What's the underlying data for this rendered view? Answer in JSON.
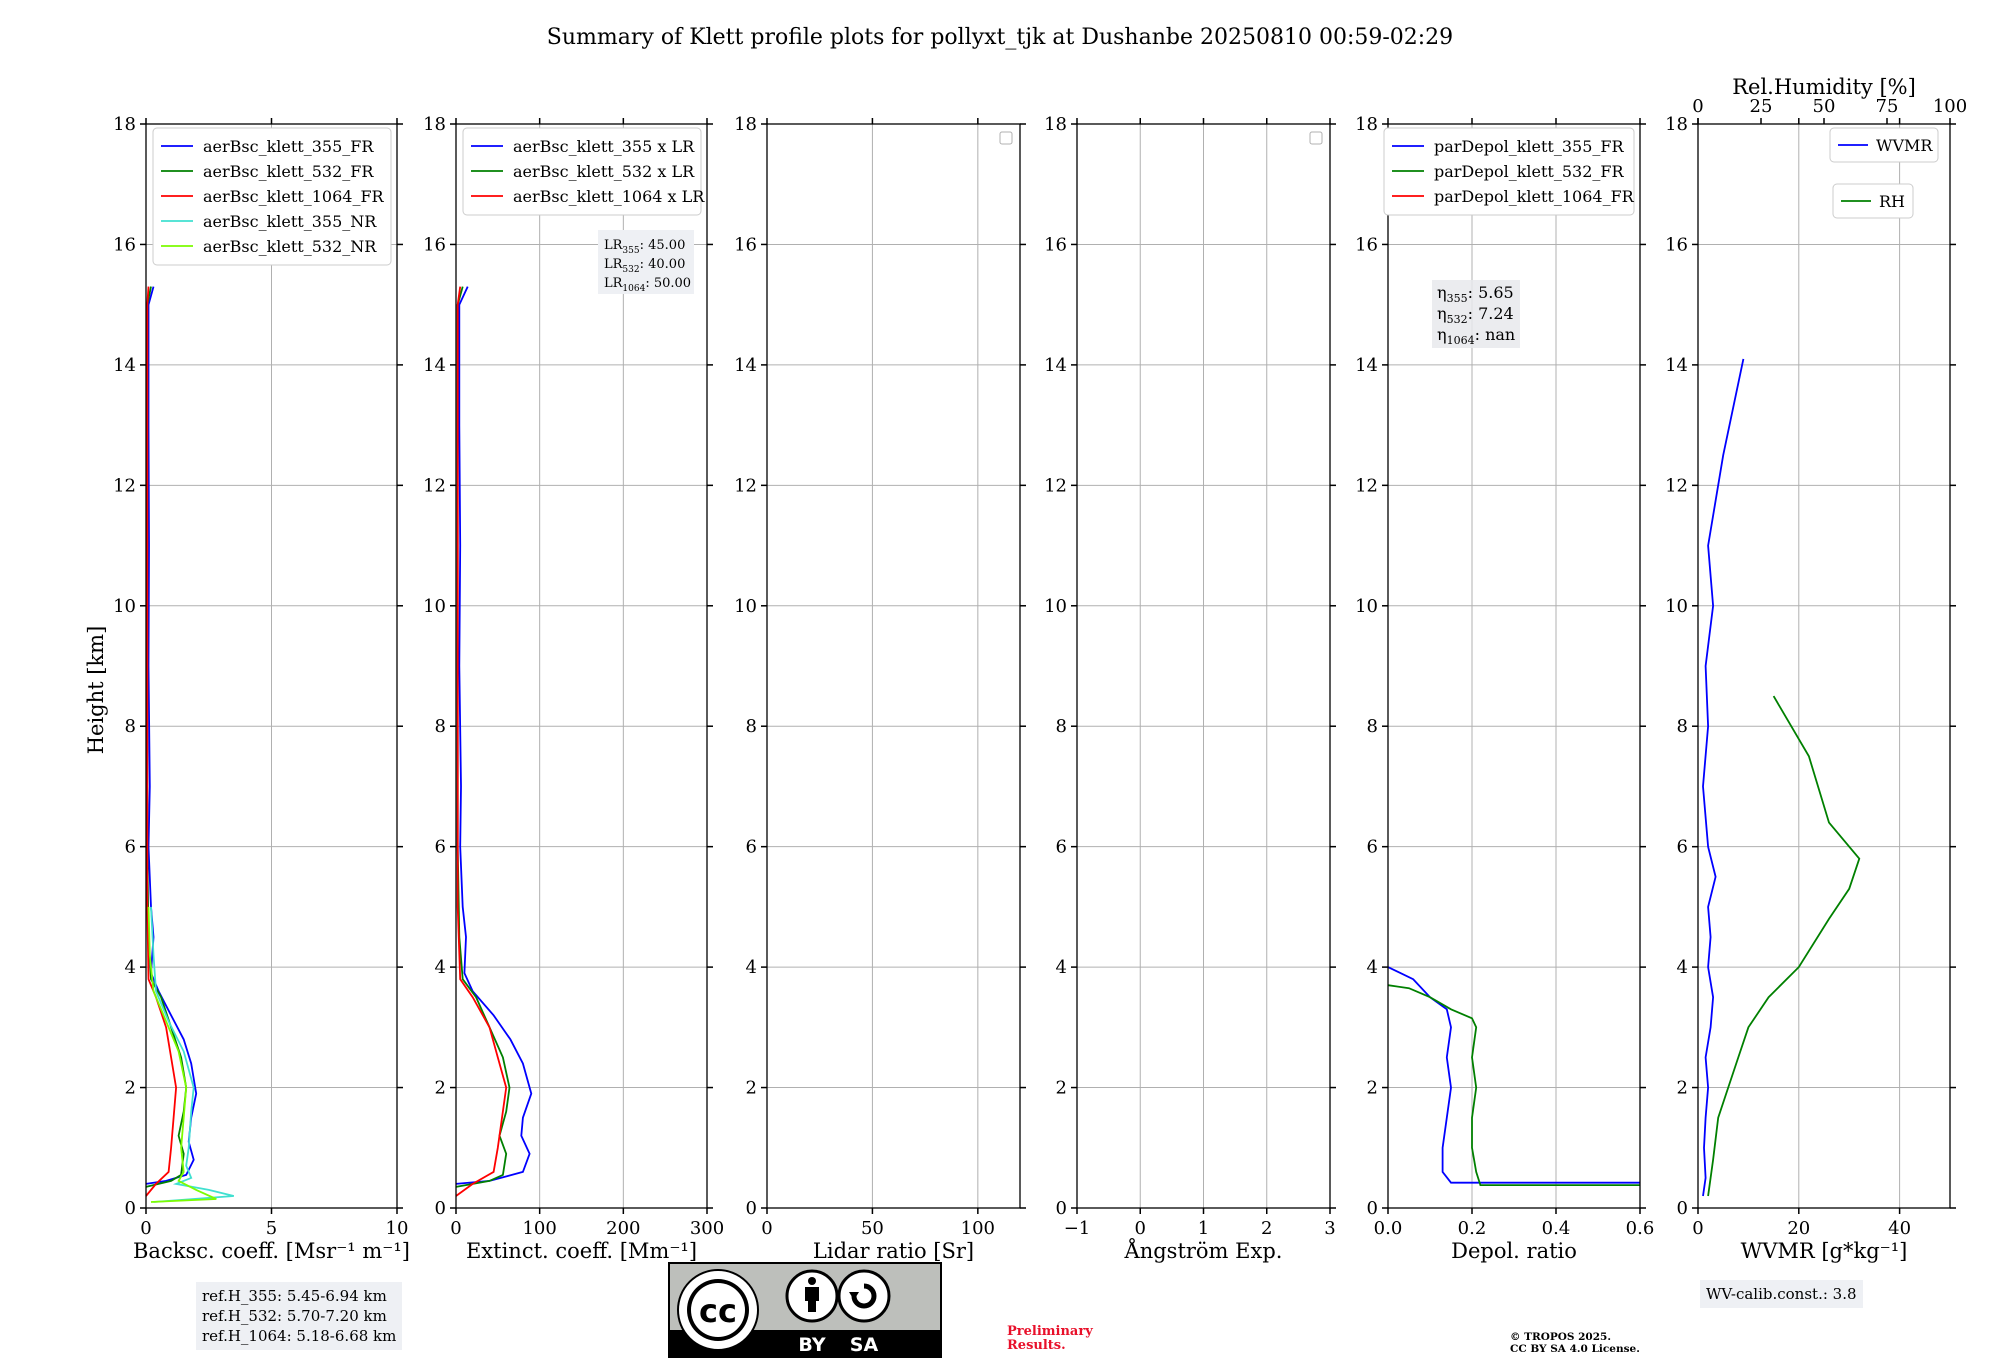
{
  "title": "Summary of Klett profile plots for pollyxt_tjk at Dushanbe 20250810 00:59-02:29",
  "height_axis_label": "Height [km]",
  "height_ticks": [
    "0",
    "2",
    "4",
    "6",
    "8",
    "10",
    "12",
    "14",
    "16",
    "18"
  ],
  "chart_data": [
    {
      "type": "line",
      "panel": "backscatter",
      "xlabel": "Backsc. coeff. [Msr⁻¹ m⁻¹]",
      "ylabel": "Height [km]",
      "xlim": [
        0,
        10
      ],
      "ylim": [
        0,
        18
      ],
      "xticks": [
        "0",
        "5",
        "10"
      ],
      "grid": true,
      "legend_position": "top-right",
      "series": [
        {
          "name": "aerBsc_klett_355_FR",
          "color": "#0000ff",
          "points": [
            [
              0,
              0.4
            ],
            [
              0.8,
              0.45
            ],
            [
              1.6,
              0.55
            ],
            [
              1.9,
              0.8
            ],
            [
              1.7,
              1.1
            ],
            [
              1.8,
              1.5
            ],
            [
              2.0,
              1.9
            ],
            [
              1.8,
              2.4
            ],
            [
              1.5,
              2.8
            ],
            [
              1.0,
              3.2
            ],
            [
              0.5,
              3.6
            ],
            [
              0.2,
              3.9
            ],
            [
              0.3,
              4.5
            ],
            [
              0.2,
              5.0
            ],
            [
              0.1,
              6.0
            ],
            [
              0.15,
              7.0
            ],
            [
              0.1,
              9.0
            ],
            [
              0.12,
              11.0
            ],
            [
              0.1,
              13.0
            ],
            [
              0.1,
              15.0
            ],
            [
              0.3,
              15.3
            ]
          ]
        },
        {
          "name": "aerBsc_klett_532_FR",
          "color": "#008000",
          "points": [
            [
              0,
              0.35
            ],
            [
              1.0,
              0.45
            ],
            [
              1.4,
              0.55
            ],
            [
              1.5,
              0.9
            ],
            [
              1.3,
              1.2
            ],
            [
              1.5,
              1.6
            ],
            [
              1.6,
              2.0
            ],
            [
              1.4,
              2.5
            ],
            [
              1.0,
              3.0
            ],
            [
              0.6,
              3.5
            ],
            [
              0.2,
              3.8
            ],
            [
              0.1,
              4.5
            ],
            [
              0.05,
              6.0
            ],
            [
              0.05,
              9.0
            ],
            [
              0.05,
              12.0
            ],
            [
              0.05,
              15.0
            ],
            [
              0.2,
              15.3
            ]
          ]
        },
        {
          "name": "aerBsc_klett_1064_FR",
          "color": "#ff0000",
          "points": [
            [
              0,
              0.2
            ],
            [
              0.4,
              0.4
            ],
            [
              0.9,
              0.6
            ],
            [
              1.0,
              1.0
            ],
            [
              1.1,
              1.5
            ],
            [
              1.2,
              2.0
            ],
            [
              1.0,
              2.5
            ],
            [
              0.8,
              3.0
            ],
            [
              0.4,
              3.5
            ],
            [
              0.1,
              3.8
            ],
            [
              0.05,
              5.0
            ],
            [
              0.05,
              8.0
            ],
            [
              0.05,
              12.0
            ],
            [
              0.05,
              15.0
            ],
            [
              0.1,
              15.3
            ]
          ]
        },
        {
          "name": "aerBsc_klett_355_NR",
          "color": "#40e0d0",
          "points": [
            [
              0.3,
              0.1
            ],
            [
              3.5,
              0.2
            ],
            [
              2.5,
              0.3
            ],
            [
              1.2,
              0.4
            ],
            [
              1.8,
              0.5
            ],
            [
              1.6,
              0.7
            ],
            [
              1.7,
              1.0
            ],
            [
              1.8,
              1.6
            ],
            [
              1.9,
              2.0
            ],
            [
              1.5,
              2.6
            ],
            [
              0.9,
              3.1
            ],
            [
              0.4,
              3.6
            ],
            [
              0.3,
              4.2
            ],
            [
              0.2,
              5.0
            ]
          ]
        },
        {
          "name": "aerBsc_klett_532_NR",
          "color": "#7cfc00",
          "points": [
            [
              0.2,
              0.1
            ],
            [
              2.8,
              0.15
            ],
            [
              2.0,
              0.3
            ],
            [
              1.3,
              0.45
            ],
            [
              1.5,
              0.6
            ],
            [
              1.4,
              1.0
            ],
            [
              1.5,
              1.5
            ],
            [
              1.6,
              2.0
            ],
            [
              1.3,
              2.6
            ],
            [
              0.8,
              3.1
            ],
            [
              0.3,
              3.6
            ],
            [
              0.15,
              4.2
            ],
            [
              0.1,
              5.0
            ]
          ]
        }
      ]
    },
    {
      "type": "line",
      "panel": "extinction",
      "xlabel": "Extinct. coeff. [Mm⁻¹]",
      "xlim": [
        0,
        300
      ],
      "ylim": [
        0,
        18
      ],
      "xticks": [
        "0",
        "100",
        "200",
        "300"
      ],
      "grid": true,
      "legend_position": "top-right",
      "annotation": [
        "LR355: 45.00",
        "LR532: 40.00",
        "LR1064: 50.00"
      ],
      "series": [
        {
          "name": "aerBsc_klett_355 x LR",
          "color": "#0000ff",
          "points": [
            [
              0,
              0.4
            ],
            [
              40,
              0.45
            ],
            [
              80,
              0.6
            ],
            [
              88,
              0.9
            ],
            [
              78,
              1.2
            ],
            [
              80,
              1.5
            ],
            [
              90,
              1.9
            ],
            [
              80,
              2.4
            ],
            [
              65,
              2.8
            ],
            [
              45,
              3.2
            ],
            [
              20,
              3.6
            ],
            [
              10,
              3.9
            ],
            [
              12,
              4.5
            ],
            [
              8,
              5.0
            ],
            [
              5,
              6.0
            ],
            [
              6,
              7.0
            ],
            [
              4,
              9.0
            ],
            [
              5,
              11.0
            ],
            [
              4,
              13.0
            ],
            [
              4,
              15.0
            ],
            [
              14,
              15.3
            ]
          ]
        },
        {
          "name": "aerBsc_klett_532 x LR",
          "color": "#008000",
          "points": [
            [
              0,
              0.35
            ],
            [
              40,
              0.45
            ],
            [
              56,
              0.55
            ],
            [
              60,
              0.9
            ],
            [
              52,
              1.2
            ],
            [
              60,
              1.6
            ],
            [
              64,
              2.0
            ],
            [
              56,
              2.5
            ],
            [
              40,
              3.0
            ],
            [
              24,
              3.5
            ],
            [
              8,
              3.8
            ],
            [
              4,
              4.5
            ],
            [
              2,
              6.0
            ],
            [
              2,
              9.0
            ],
            [
              2,
              12.0
            ],
            [
              2,
              15.0
            ],
            [
              8,
              15.3
            ]
          ]
        },
        {
          "name": "aerBsc_klett_1064 x LR",
          "color": "#ff0000",
          "points": [
            [
              0,
              0.2
            ],
            [
              20,
              0.4
            ],
            [
              45,
              0.6
            ],
            [
              50,
              1.0
            ],
            [
              55,
              1.5
            ],
            [
              60,
              2.0
            ],
            [
              50,
              2.5
            ],
            [
              40,
              3.0
            ],
            [
              20,
              3.5
            ],
            [
              5,
              3.8
            ],
            [
              2,
              5.0
            ],
            [
              2,
              8.0
            ],
            [
              2,
              12.0
            ],
            [
              2,
              15.0
            ],
            [
              5,
              15.3
            ]
          ]
        }
      ]
    },
    {
      "type": "line",
      "panel": "lidar_ratio",
      "xlabel": "Lidar ratio [Sr]",
      "xlim": [
        0,
        120
      ],
      "ylim": [
        0,
        18
      ],
      "xticks": [
        "0",
        "50",
        "100"
      ],
      "grid": true,
      "series": []
    },
    {
      "type": "line",
      "panel": "angstrom",
      "xlabel": "Ångström Exp.",
      "xlim": [
        -1,
        3
      ],
      "ylim": [
        0,
        18
      ],
      "xticks": [
        "−1",
        "0",
        "1",
        "2",
        "3"
      ],
      "grid": true,
      "series": []
    },
    {
      "type": "line",
      "panel": "depol",
      "xlabel": "Depol. ratio",
      "xlim": [
        0,
        0.6
      ],
      "ylim": [
        0,
        18
      ],
      "xticks": [
        "0.0",
        "0.2",
        "0.4",
        "0.6"
      ],
      "grid": true,
      "legend_position": "top-right",
      "annotation": [
        "η355: 5.65",
        "η532: 7.24",
        "η1064: nan"
      ],
      "series": [
        {
          "name": "parDepol_klett_355_FR",
          "color": "#0000ff",
          "points": [
            [
              0.6,
              0.42
            ],
            [
              0.15,
              0.42
            ],
            [
              0.13,
              0.6
            ],
            [
              0.13,
              1.0
            ],
            [
              0.14,
              1.5
            ],
            [
              0.15,
              2.0
            ],
            [
              0.14,
              2.5
            ],
            [
              0.15,
              3.0
            ],
            [
              0.14,
              3.3
            ],
            [
              0.1,
              3.5
            ],
            [
              0.06,
              3.8
            ],
            [
              0.0,
              4.0
            ]
          ]
        },
        {
          "name": "parDepol_klett_532_FR",
          "color": "#008000",
          "points": [
            [
              0.6,
              0.38
            ],
            [
              0.22,
              0.38
            ],
            [
              0.21,
              0.6
            ],
            [
              0.2,
              1.0
            ],
            [
              0.2,
              1.5
            ],
            [
              0.21,
              2.0
            ],
            [
              0.2,
              2.5
            ],
            [
              0.21,
              3.0
            ],
            [
              0.2,
              3.15
            ],
            [
              0.15,
              3.3
            ],
            [
              0.1,
              3.5
            ],
            [
              0.05,
              3.65
            ],
            [
              0.0,
              3.7
            ]
          ]
        },
        {
          "name": "parDepol_klett_1064_FR",
          "color": "#ff0000",
          "points": []
        }
      ]
    },
    {
      "type": "line",
      "panel": "wvmr",
      "xlabel": "WVMR [g*kg⁻¹]",
      "top_xlabel": "Rel.Humidity [%]",
      "xlim": [
        0,
        50
      ],
      "ylim": [
        0,
        18
      ],
      "xticks": [
        "0",
        "20",
        "40"
      ],
      "top_xticks": [
        "0",
        "25",
        "50",
        "75",
        "100"
      ],
      "grid": true,
      "legend": [
        "WVMR",
        "RH"
      ],
      "series": [
        {
          "name": "WVMR",
          "color": "#0000ff",
          "points": [
            [
              1.0,
              0.2
            ],
            [
              1.5,
              0.5
            ],
            [
              1.2,
              1.0
            ],
            [
              1.5,
              1.5
            ],
            [
              2.0,
              2.0
            ],
            [
              1.5,
              2.5
            ],
            [
              2.5,
              3.0
            ],
            [
              3.0,
              3.5
            ],
            [
              2.0,
              4.0
            ],
            [
              2.5,
              4.5
            ],
            [
              2.0,
              5.0
            ],
            [
              3.5,
              5.5
            ],
            [
              2.0,
              6.0
            ],
            [
              1.0,
              7.0
            ],
            [
              2.0,
              8.0
            ],
            [
              1.5,
              9.0
            ],
            [
              3.0,
              10.0
            ],
            [
              2.0,
              11.0
            ],
            [
              5.0,
              12.5
            ],
            [
              9.0,
              14.1
            ]
          ]
        },
        {
          "name": "RH",
          "color": "#008000",
          "points": [
            [
              2.0,
              0.2
            ],
            [
              3.0,
              0.8
            ],
            [
              4.0,
              1.5
            ],
            [
              6.0,
              2.0
            ],
            [
              8.0,
              2.5
            ],
            [
              10.0,
              3.0
            ],
            [
              14.0,
              3.5
            ],
            [
              20.0,
              4.0
            ],
            [
              26.0,
              4.8
            ],
            [
              30.0,
              5.3
            ],
            [
              32.0,
              5.8
            ],
            [
              26.0,
              6.4
            ],
            [
              22.0,
              7.5
            ],
            [
              15.0,
              8.5
            ]
          ]
        }
      ]
    }
  ],
  "ref_heights": [
    "ref.H_355: 5.45-6.94 km",
    "ref.H_532: 5.70-7.20 km",
    "ref.H_1064: 5.18-6.68 km"
  ],
  "wv_calib": "WV-calib.const.: 3.8",
  "preliminary": [
    "Preliminary",
    "Results."
  ],
  "copyright": [
    "© TROPOS 2025.",
    "CC BY SA 4.0 License."
  ],
  "license_badge": {
    "cc": "cc",
    "by": "BY",
    "sa": "SA"
  }
}
